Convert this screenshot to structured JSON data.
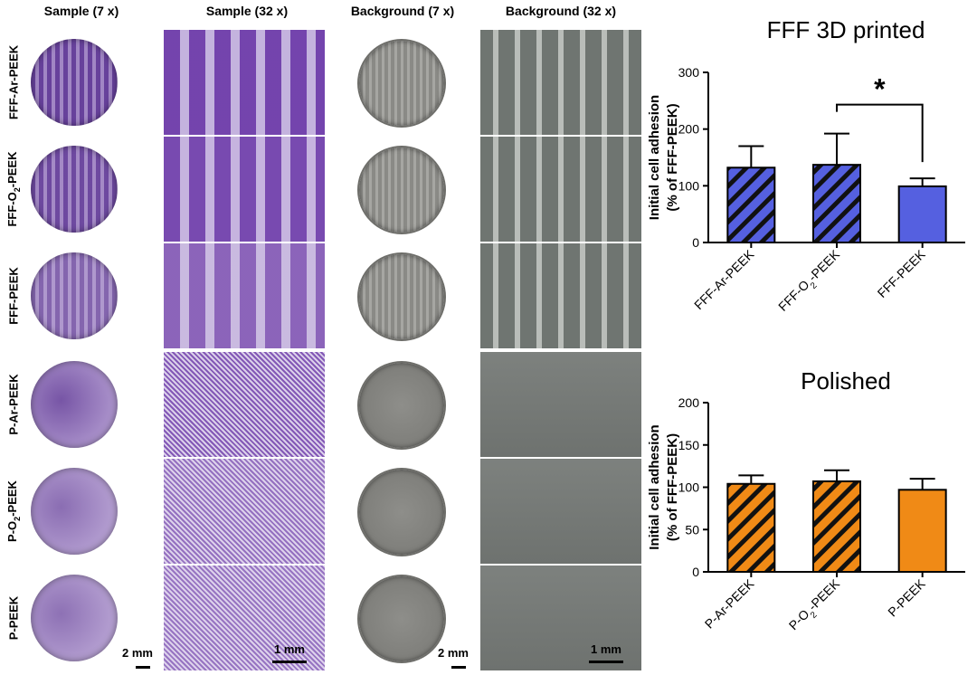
{
  "columns": [
    "Sample (7 x)",
    "Sample (32 x)",
    "Background  (7 x)",
    "Background  (32 x)"
  ],
  "rows": [
    {
      "pre": "FFF-Ar-PEEK",
      "sub": "",
      "post": ""
    },
    {
      "pre": "FFF-O",
      "sub": "2",
      "post": "-PEEK"
    },
    {
      "pre": "FFF-PEEK",
      "sub": "",
      "post": ""
    },
    {
      "pre": "P-Ar-PEEK",
      "sub": "",
      "post": ""
    },
    {
      "pre": "P-O",
      "sub": "2",
      "post": "-PEEK"
    },
    {
      "pre": "P-PEEK",
      "sub": "",
      "post": ""
    }
  ],
  "scale_bars": {
    "sample_7x": "2 mm",
    "sample_32x": "1 mm",
    "background_7x": "2 mm",
    "background_32x": "1 mm"
  },
  "colors": {
    "stain_dark": "#6a3fa0",
    "stain_light": "#a58bc6",
    "background_gray": "#8e8e8a",
    "fff_bar": "#5560e0",
    "polished_bar": "#f08a16"
  },
  "chart_data": [
    {
      "type": "bar",
      "title": "FFF 3D printed",
      "ylabel": [
        "Initial cell adhesion",
        "(% of FFF-PEEK)"
      ],
      "ylim": [
        0,
        300
      ],
      "yticks": [
        0,
        100,
        200,
        300
      ],
      "categories": [
        {
          "pre": "FFF-Ar-PEEK",
          "sub": "",
          "post": ""
        },
        {
          "pre": "FFF-O",
          "sub": "2",
          "post": "-PEEK"
        },
        {
          "pre": "FFF-PEEK",
          "sub": "",
          "post": ""
        }
      ],
      "values": [
        132,
        137,
        99
      ],
      "errors": [
        38,
        55,
        14
      ],
      "hatched": [
        true,
        true,
        false
      ],
      "color": "#5560e0",
      "significance": {
        "between": [
          1,
          2
        ],
        "label": "*"
      }
    },
    {
      "type": "bar",
      "title": "Polished",
      "ylabel": [
        "Initial cell adhesion",
        "(% of FFF-PEEK)"
      ],
      "ylim": [
        0,
        200
      ],
      "yticks": [
        0,
        50,
        100,
        150,
        200
      ],
      "categories": [
        {
          "pre": "P-Ar-PEEK",
          "sub": "",
          "post": ""
        },
        {
          "pre": "P-O",
          "sub": "2",
          "post": "-PEEK"
        },
        {
          "pre": "P-PEEK",
          "sub": "",
          "post": ""
        }
      ],
      "values": [
        104,
        107,
        97
      ],
      "errors": [
        10,
        13,
        13
      ],
      "hatched": [
        true,
        true,
        false
      ],
      "color": "#f08a16"
    }
  ]
}
